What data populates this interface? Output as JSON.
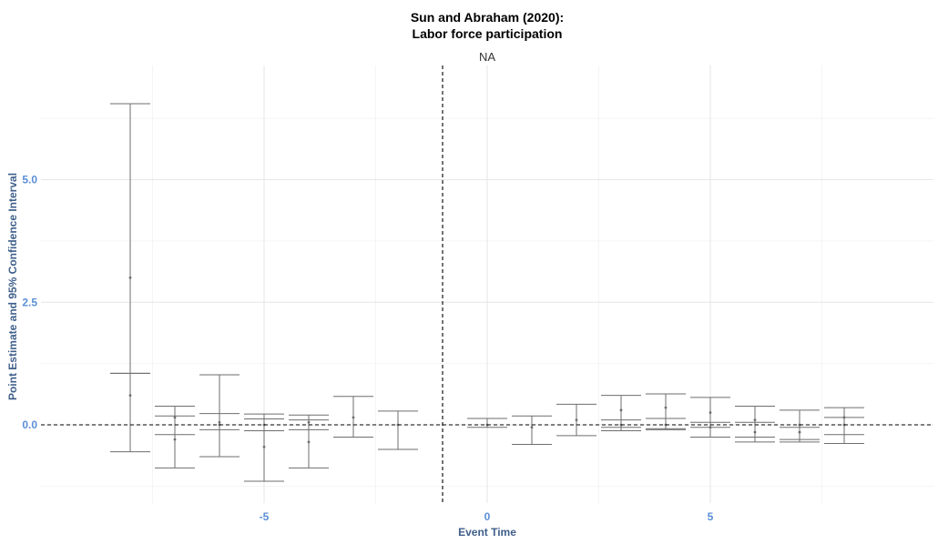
{
  "chart_data": {
    "type": "scatter",
    "title": "Sun and Abraham (2020):",
    "subtitle": "Labor force participation",
    "facet_label": "NA",
    "xlabel": "Event Time",
    "ylabel": "Point Estimate and 95% Confidence Interval",
    "xlim": [
      -9.9,
      9.9
    ],
    "ylim": [
      -1.6,
      7.3
    ],
    "x_ticks": [
      -5,
      0,
      5
    ],
    "x_tick_labels": [
      "-5",
      "0",
      "5"
    ],
    "y_ticks": [
      0,
      2.5,
      5
    ],
    "y_tick_labels": [
      "0.0",
      "2.5",
      "5.0"
    ],
    "reference_lines": {
      "vertical_x": -1,
      "horizontal_y": 0
    },
    "grid": true,
    "series": [
      {
        "x": [
          -8,
          -8,
          -7,
          -7,
          -6,
          -6,
          -5,
          -5,
          -4,
          -4,
          -3,
          -2,
          0,
          1,
          2,
          3,
          3,
          4,
          4,
          5,
          5,
          6,
          6,
          7,
          7,
          8,
          8
        ],
        "estimate": [
          3.0,
          0.6,
          0.15,
          -0.3,
          0.05,
          0.0,
          0.0,
          -0.45,
          0.05,
          -0.35,
          0.15,
          0.0,
          0.0,
          -0.05,
          0.1,
          0.3,
          0.0,
          0.35,
          0.0,
          0.25,
          -0.05,
          0.1,
          -0.15,
          0.0,
          -0.15,
          0.15,
          0.0
        ],
        "ci_low": [
          1.05,
          -0.55,
          -0.2,
          -0.88,
          -0.1,
          -0.65,
          -0.12,
          -1.15,
          -0.1,
          -0.88,
          -0.25,
          -0.5,
          -0.05,
          -0.4,
          -0.22,
          -0.12,
          -0.05,
          -0.1,
          -0.08,
          -0.05,
          -0.25,
          -0.25,
          -0.35,
          -0.3,
          -0.35,
          -0.2,
          -0.38
        ],
        "ci_high": [
          6.55,
          1.05,
          0.38,
          0.18,
          1.02,
          0.23,
          0.22,
          0.12,
          0.2,
          0.1,
          0.58,
          0.28,
          0.13,
          0.18,
          0.42,
          0.6,
          0.1,
          0.63,
          0.13,
          0.56,
          0.05,
          0.38,
          0.05,
          0.3,
          -0.05,
          0.35,
          0.15
        ]
      }
    ]
  }
}
